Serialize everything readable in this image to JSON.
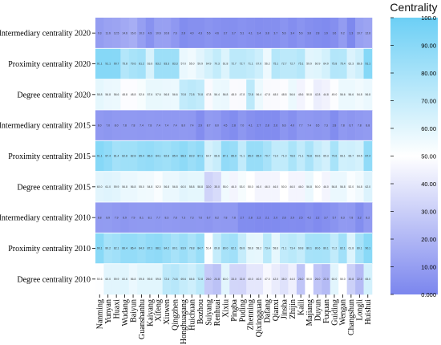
{
  "chart_data": {
    "type": "heatmap",
    "title": "",
    "xlabel": "",
    "ylabel": "",
    "colorbar": {
      "label": "Centrality",
      "range": [
        0,
        100
      ],
      "ticks": [
        "0.000",
        "10.00",
        "20.00",
        "30.00",
        "40.00",
        "50.00",
        "60.00",
        "70.00",
        "80.00",
        "90.00",
        "100.0"
      ],
      "colors": {
        "low": "#7b86ee",
        "mid": "#ffffff",
        "high": "#6ccff5"
      }
    },
    "rows": [
      "Intermediary centrality 2020",
      "Proximity centrality 2020",
      "Degree centrality 2020",
      "Intermediary centrality 2015",
      "Proximity centrality 2015",
      "Degree centrality 2015",
      "Intermediary centrality 2010",
      "Proximity centrality 2010",
      "Degree centrality 2010"
    ],
    "columns": [
      "Nanming",
      "Yunyan",
      "Huaxi",
      "Wudang",
      "Baiyun",
      "Guanshanhu",
      "Kaiyang",
      "Xifeng",
      "Xiuwen",
      "Qingzhen",
      "Honghuagang",
      "Huichuan",
      "Bozhou",
      "Suiyang",
      "Renhuai",
      "Xixiu",
      "Pingba",
      "Puding",
      "Zhenning",
      "Qixingguan",
      "Dafang",
      "Qianxi",
      "Jinsha",
      "Zhijin",
      "Kaili",
      "Majiang",
      "Duyun",
      "Fuquan",
      "Guiding",
      "Wengan",
      "Changshun",
      "Longli",
      "Huishui"
    ],
    "values": [
      [
        9.3,
        11.6,
        12.5,
        14.6,
        16.6,
        10.3,
        4.9,
        10.6,
        10.8,
        7.6,
        2.8,
        4.0,
        4.3,
        5.6,
        4.6,
        3.7,
        3.7,
        5.1,
        4.1,
        3.4,
        3.8,
        3.7,
        5.6,
        3.4,
        5.6,
        3.8,
        2.8,
        1.9,
        3.6,
        9.2,
        1.3,
        10.7,
        12.6
      ],
      [
        91.1,
        91.1,
        90.7,
        75.8,
        79.6,
        81.2,
        63.6,
        83.2,
        83.3,
        83.3,
        57.0,
        55.0,
        59.9,
        64.9,
        70.3,
        61.8,
        72.7,
        72.7,
        71.1,
        67.0,
        56.2,
        75.1,
        72.7,
        72.7,
        75.1,
        59.9,
        60.9,
        64.9,
        75.8,
        75.4,
        62.3,
        66.6,
        91.1
      ],
      [
        58.8,
        56.8,
        56.6,
        48.8,
        48.8,
        52.6,
        57.6,
        57.6,
        56.8,
        56.6,
        70.8,
        72.8,
        70.8,
        47.8,
        56.4,
        56.8,
        48.0,
        47.8,
        72.8,
        56.4,
        47.8,
        48.0,
        48.8,
        56.6,
        45.6,
        50.8,
        42.8,
        44.8,
        49.0,
        56.6,
        56.6,
        54.8,
        56.8
      ],
      [
        8.0,
        7.0,
        8.0,
        7.8,
        7.8,
        7.4,
        7.8,
        7.4,
        7.4,
        7.4,
        8.0,
        7.4,
        2.9,
        8.7,
        8.0,
        4.5,
        2.8,
        7.0,
        4.1,
        2.7,
        2.8,
        2.6,
        6.6,
        4.0,
        7.7,
        7.4,
        6.5,
        7.3,
        2.8,
        7.8,
        6.7,
        7.8,
        8.8
      ],
      [
        91.1,
        87.4,
        81.4,
        82.8,
        82.8,
        85.4,
        86.3,
        84.1,
        82.8,
        85.4,
        88.3,
        83.9,
        87.1,
        64.7,
        68.6,
        87.1,
        85.0,
        71.1,
        85.0,
        85.0,
        79.7,
        71.0,
        71.0,
        78.6,
        71.1,
        78.8,
        69.6,
        65.3,
        79.6,
        66.1,
        66.7,
        64.5,
        87.4
      ],
      [
        60.0,
        61.0,
        59.9,
        56.8,
        56.8,
        55.0,
        54.8,
        52.0,
        56.8,
        56.8,
        60.0,
        58.8,
        58.8,
        32.0,
        35.0,
        55.0,
        46.0,
        53.0,
        50.0,
        46.0,
        46.0,
        46.0,
        50.0,
        46.0,
        46.0,
        56.8,
        50.0,
        46.0,
        56.8,
        56.8,
        52.0,
        54.8,
        62.0
      ],
      [
        8.8,
        8.9,
        7.9,
        6.9,
        7.9,
        8.1,
        8.1,
        7.7,
        8.3,
        7.8,
        7.3,
        7.3,
        7.6,
        6.7,
        8.2,
        7.8,
        7.8,
        2.7,
        2.8,
        2.2,
        2.1,
        2.0,
        2.8,
        2.9,
        2.5,
        4.2,
        2.2,
        3.7,
        5.7,
        8.3,
        7.8,
        3.2,
        8.2
      ],
      [
        90.1,
        80.2,
        82.1,
        86.4,
        86.4,
        84.0,
        87.1,
        88.1,
        84.2,
        80.1,
        83.9,
        78.8,
        84.7,
        51.4,
        69.8,
        80.0,
        82.1,
        69.8,
        58.8,
        58.2,
        73.4,
        58.6,
        71.1,
        73.4,
        69.8,
        80.1,
        80.6,
        80.1,
        71.2,
        82.1,
        61.8,
        80.1,
        90.1
      ],
      [
        50.6,
        60.0,
        59.9,
        60.6,
        56.8,
        59.8,
        59.8,
        59.8,
        72.6,
        74.6,
        69.6,
        66.6,
        72.8,
        28.0,
        24.8,
        60.0,
        33.0,
        32.8,
        40.0,
        40.0,
        47.0,
        42.0,
        38.0,
        44.0,
        26.0,
        50.0,
        26.0,
        22.0,
        60.0,
        50.0,
        30.8,
        22.0,
        65.0
      ]
    ]
  }
}
